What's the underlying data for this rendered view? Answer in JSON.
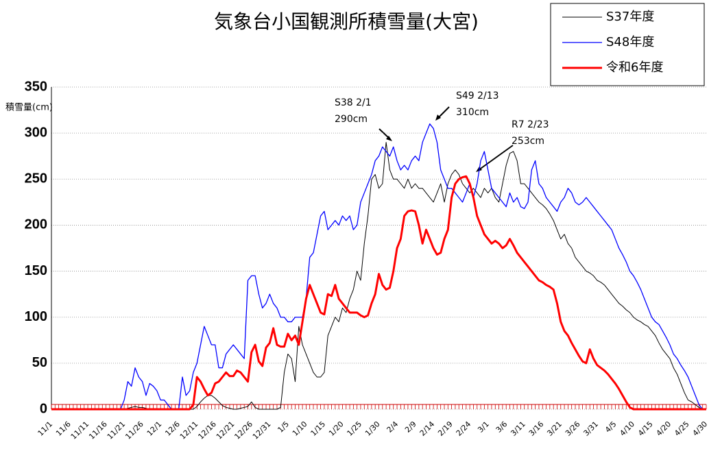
{
  "chart_data": {
    "type": "line",
    "title": "気象台小国観測所積雪量(大宮)",
    "y_label": "積雪量(cm)",
    "ylim": [
      0,
      350
    ],
    "yticks": [
      0,
      50,
      100,
      150,
      200,
      250,
      300,
      350
    ],
    "grid": true,
    "legend": "top-right",
    "annotations": [
      [
        "S38 2/1",
        "290cm"
      ],
      [
        "S49 2/13",
        "310cm"
      ],
      [
        "R7 2/23",
        "253cm"
      ]
    ],
    "categories": [
      "11/1",
      null,
      null,
      null,
      null,
      "11/6",
      null,
      null,
      null,
      null,
      "11/11",
      null,
      null,
      null,
      null,
      "11/16",
      null,
      null,
      null,
      null,
      "11/21",
      null,
      null,
      null,
      null,
      "11/26",
      null,
      null,
      null,
      null,
      "12/1",
      null,
      null,
      null,
      null,
      "12/6",
      null,
      null,
      null,
      null,
      "12/11",
      null,
      null,
      null,
      null,
      "12/16",
      null,
      null,
      null,
      null,
      "12/21",
      null,
      null,
      null,
      null,
      "12/26",
      null,
      null,
      null,
      null,
      "12/31",
      null,
      null,
      null,
      null,
      "1/5",
      null,
      null,
      null,
      null,
      "1/10",
      null,
      null,
      null,
      null,
      "1/15",
      null,
      null,
      null,
      null,
      "1/20",
      null,
      null,
      null,
      null,
      "1/25",
      null,
      null,
      null,
      null,
      "1/30",
      null,
      null,
      null,
      null,
      "2/4",
      null,
      null,
      null,
      null,
      "2/9",
      null,
      null,
      null,
      null,
      "2/14",
      null,
      null,
      null,
      null,
      "2/19",
      null,
      null,
      null,
      null,
      "2/24",
      null,
      null,
      null,
      null,
      "3/1",
      null,
      null,
      null,
      null,
      "3/6",
      null,
      null,
      null,
      null,
      "3/11",
      null,
      null,
      null,
      null,
      "3/16",
      null,
      null,
      null,
      null,
      "3/21",
      null,
      null,
      null,
      null,
      "3/26",
      null,
      null,
      null,
      null,
      "3/31",
      null,
      null,
      null,
      null,
      "4/5",
      null,
      null,
      null,
      null,
      "4/10",
      null,
      null,
      null,
      null,
      "4/15",
      null,
      null,
      null,
      null,
      "4/20",
      null,
      null,
      null,
      null,
      "4/25",
      null,
      null,
      null,
      null,
      "4/30"
    ],
    "series": [
      {
        "name": "S37年度",
        "color": "#000000",
        "width": 1,
        "values": [
          0,
          0,
          0,
          0,
          0,
          0,
          0,
          0,
          0,
          0,
          0,
          0,
          0,
          0,
          0,
          0,
          0,
          0,
          0,
          0,
          0,
          1,
          2,
          3,
          2,
          2,
          1,
          0,
          0,
          0,
          0,
          0,
          0,
          0,
          0,
          0,
          0,
          0,
          0,
          0,
          3,
          8,
          12,
          15,
          15,
          12,
          8,
          4,
          2,
          1,
          0,
          0,
          1,
          2,
          3,
          8,
          2,
          0,
          0,
          0,
          0,
          0,
          0,
          2,
          40,
          60,
          55,
          30,
          90,
          70,
          60,
          50,
          40,
          35,
          35,
          40,
          80,
          90,
          100,
          95,
          110,
          105,
          120,
          130,
          150,
          140,
          180,
          210,
          250,
          255,
          240,
          245,
          290,
          260,
          250,
          250,
          245,
          240,
          250,
          240,
          245,
          240,
          240,
          235,
          230,
          225,
          235,
          245,
          225,
          245,
          255,
          260,
          255,
          245,
          240,
          235,
          240,
          235,
          230,
          240,
          235,
          240,
          230,
          225,
          245,
          265,
          278,
          280,
          270,
          245,
          245,
          240,
          235,
          230,
          225,
          222,
          218,
          212,
          205,
          195,
          185,
          190,
          180,
          175,
          165,
          160,
          155,
          150,
          148,
          145,
          140,
          138,
          135,
          130,
          125,
          120,
          115,
          112,
          108,
          105,
          100,
          97,
          95,
          92,
          90,
          85,
          80,
          72,
          65,
          60,
          55,
          45,
          38,
          28,
          18,
          10,
          8,
          5,
          2,
          0,
          0
        ]
      },
      {
        "name": "S48年度",
        "color": "#0000ff",
        "width": 1.3,
        "values": [
          0,
          0,
          0,
          0,
          0,
          0,
          0,
          0,
          0,
          0,
          0,
          0,
          0,
          0,
          0,
          0,
          0,
          0,
          0,
          0,
          10,
          30,
          25,
          45,
          35,
          30,
          15,
          28,
          25,
          20,
          10,
          10,
          5,
          0,
          0,
          0,
          35,
          15,
          20,
          40,
          50,
          70,
          90,
          80,
          70,
          70,
          45,
          45,
          60,
          65,
          70,
          65,
          60,
          55,
          140,
          145,
          145,
          125,
          110,
          115,
          125,
          115,
          110,
          100,
          100,
          95,
          95,
          100,
          100,
          100,
          120,
          165,
          170,
          190,
          210,
          215,
          195,
          200,
          205,
          200,
          210,
          205,
          210,
          195,
          200,
          225,
          235,
          245,
          255,
          270,
          275,
          285,
          280,
          275,
          285,
          270,
          260,
          265,
          260,
          270,
          275,
          270,
          290,
          300,
          310,
          305,
          290,
          260,
          250,
          240,
          240,
          235,
          230,
          225,
          235,
          245,
          230,
          245,
          270,
          280,
          260,
          240,
          235,
          230,
          225,
          220,
          235,
          225,
          230,
          220,
          218,
          225,
          260,
          270,
          245,
          240,
          230,
          225,
          220,
          215,
          225,
          230,
          240,
          235,
          225,
          222,
          225,
          230,
          225,
          220,
          215,
          210,
          205,
          200,
          195,
          185,
          175,
          168,
          160,
          150,
          145,
          138,
          130,
          120,
          110,
          100,
          95,
          92,
          85,
          78,
          70,
          60,
          55,
          48,
          42,
          35,
          25,
          15,
          5,
          0,
          0
        ]
      },
      {
        "name": "令和6年度",
        "color": "#ff0000",
        "width": 3,
        "values": [
          0,
          0,
          0,
          0,
          0,
          0,
          0,
          0,
          0,
          0,
          0,
          0,
          0,
          0,
          0,
          0,
          0,
          0,
          0,
          0,
          0,
          0,
          0,
          0,
          0,
          0,
          0,
          0,
          0,
          0,
          0,
          0,
          0,
          0,
          0,
          0,
          0,
          0,
          0,
          5,
          35,
          30,
          22,
          15,
          18,
          28,
          30,
          35,
          40,
          36,
          36,
          42,
          40,
          35,
          30,
          62,
          70,
          52,
          47,
          67,
          72,
          88,
          70,
          68,
          68,
          82,
          75,
          80,
          70,
          95,
          120,
          135,
          125,
          115,
          105,
          103,
          125,
          123,
          135,
          120,
          115,
          110,
          105,
          105,
          105,
          102,
          100,
          102,
          115,
          125,
          147,
          135,
          130,
          132,
          150,
          175,
          185,
          210,
          215,
          216,
          215,
          200,
          180,
          195,
          185,
          175,
          168,
          170,
          185,
          195,
          230,
          245,
          250,
          252,
          253,
          245,
          230,
          210,
          200,
          190,
          185,
          180,
          183,
          180,
          175,
          178,
          185,
          178,
          170,
          165,
          160,
          155,
          150,
          145,
          140,
          138,
          135,
          133,
          130,
          115,
          95,
          85,
          80,
          72,
          65,
          58,
          52,
          50,
          65,
          55,
          48,
          45,
          42,
          38,
          33,
          28,
          22,
          15,
          8,
          2,
          0,
          0,
          0,
          0,
          0,
          0,
          0,
          0,
          0,
          0,
          0,
          0,
          0,
          0,
          0,
          0,
          0,
          0,
          0,
          0,
          0
        ]
      }
    ]
  }
}
